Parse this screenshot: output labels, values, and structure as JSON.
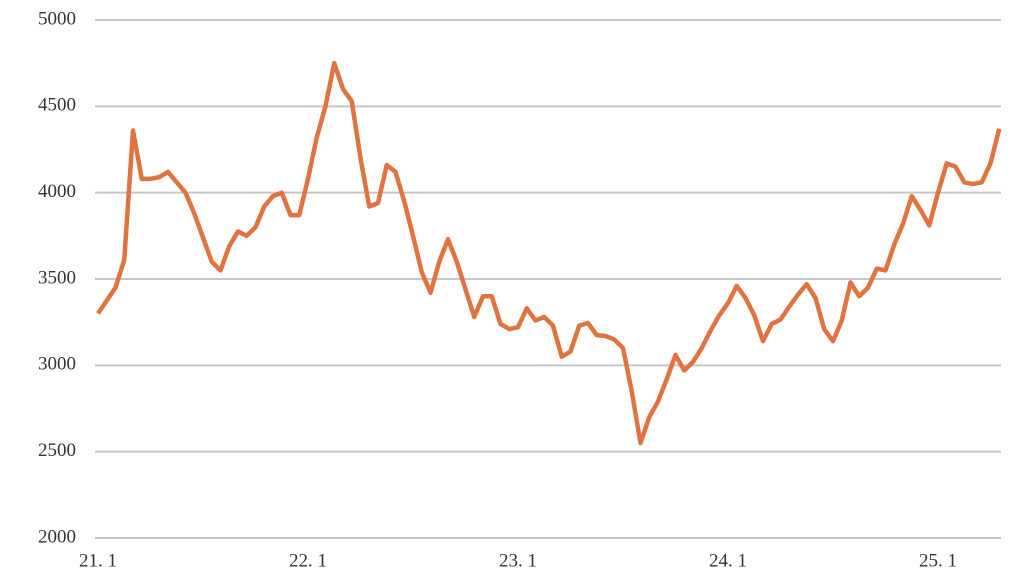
{
  "chart_data": {
    "type": "line",
    "categories": [
      "21. 1",
      null,
      null,
      null,
      null,
      null,
      null,
      null,
      null,
      null,
      null,
      null,
      null,
      null,
      null,
      null,
      null,
      null,
      null,
      null,
      null,
      null,
      null,
      null,
      "22. 1",
      null,
      null,
      null,
      null,
      null,
      null,
      null,
      null,
      null,
      null,
      null,
      null,
      null,
      null,
      null,
      null,
      null,
      null,
      null,
      null,
      null,
      null,
      null,
      "23. 1",
      null,
      null,
      null,
      null,
      null,
      null,
      null,
      null,
      null,
      null,
      null,
      null,
      null,
      null,
      null,
      null,
      null,
      null,
      null,
      null,
      null,
      null,
      null,
      "24. 1",
      null,
      null,
      null,
      null,
      null,
      null,
      null,
      null,
      null,
      null,
      null,
      null,
      null,
      null,
      null,
      null,
      null,
      null,
      null,
      null,
      null,
      null,
      null,
      "25. 1",
      null,
      null,
      null,
      null,
      null,
      null,
      null
    ],
    "series": [
      {
        "color": "#e0733f",
        "values": [
          3300,
          3375,
          3450,
          3610,
          4360,
          4080,
          4080,
          4090,
          4120,
          4060,
          4000,
          3880,
          3740,
          3600,
          3550,
          3690,
          3775,
          3750,
          3800,
          3920,
          3980,
          4000,
          3870,
          3870,
          4080,
          4320,
          4500,
          4750,
          4600,
          4530,
          4200,
          3920,
          3940,
          4160,
          4120,
          3950,
          3750,
          3540,
          3420,
          3600,
          3730,
          3600,
          3440,
          3280,
          3400,
          3400,
          3240,
          3210,
          3220,
          3330,
          3260,
          3280,
          3230,
          3050,
          3080,
          3230,
          3245,
          3175,
          3170,
          3150,
          3100,
          2850,
          2550,
          2700,
          2790,
          2920,
          3060,
          2970,
          3020,
          3100,
          3200,
          3290,
          3360,
          3460,
          3390,
          3290,
          3140,
          3240,
          3265,
          3340,
          3410,
          3470,
          3390,
          3210,
          3140,
          3260,
          3480,
          3400,
          3450,
          3560,
          3550,
          3700,
          3820,
          3980,
          3900,
          3810,
          4000,
          4170,
          4150,
          4060,
          4050,
          4060,
          4170,
          4370
        ]
      }
    ],
    "ylim": [
      2000,
      5000
    ],
    "yticks": [
      2000,
      2500,
      3000,
      3500,
      4000,
      4500,
      5000
    ],
    "grid": true
  }
}
